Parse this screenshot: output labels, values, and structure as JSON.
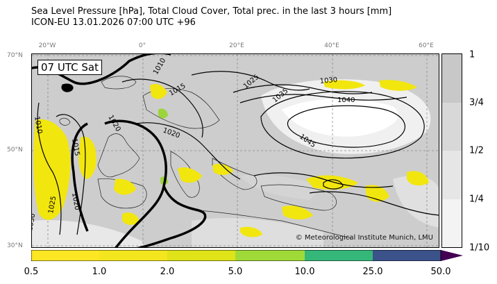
{
  "title": {
    "line1": "Sea Level Pressure [hPa], Total Cloud Cover, Total prec. in the last 3 hours [mm]",
    "line2": "ICON-EU 13.01.2026 07:00 UTC +96"
  },
  "map": {
    "valid_label": "07 UTC Sat",
    "copyright": "© Meteorological Institute Munich, LMU",
    "lon_labels": [
      "20°W",
      "0°",
      "20°E",
      "40°E",
      "60°E"
    ],
    "lat_labels": [
      "70°N",
      "50°N",
      "30°N"
    ],
    "isobar_labels": [
      "1010",
      "1010",
      "1015",
      "1015",
      "1020",
      "1020",
      "1020",
      "1025",
      "1025",
      "1030",
      "1030",
      "1035",
      "1040",
      "1045"
    ]
  },
  "cloud_cover_colorbar": {
    "tick_labels": [
      "1",
      "3/4",
      "1/2",
      "1/4",
      "1/10"
    ],
    "levels": [
      "#c8c8c8",
      "#d8d8d8",
      "#e6e6e6",
      "#f3f3f3"
    ]
  },
  "precip_colorbar": {
    "tick_labels": [
      "0.5",
      "1.0",
      "2.0",
      "5.0",
      "10.0",
      "25.0",
      "50.0"
    ],
    "colors": [
      "#fde725",
      "#f4e61e",
      "#dfe318",
      "#a0da39",
      "#35b779",
      "#3b528b",
      "#440154"
    ]
  },
  "colors": {
    "land": "#c6c6c6",
    "sea": "#ffffff",
    "precip": "#f2e60f",
    "isobar": "#000000"
  }
}
